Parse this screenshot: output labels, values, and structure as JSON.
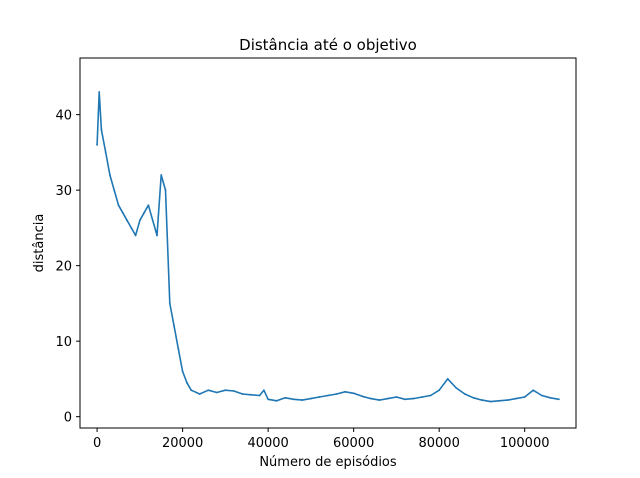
{
  "chart_data": {
    "type": "line",
    "title": "Distância até o objetivo",
    "xlabel": "Número de episódios",
    "ylabel": "distância",
    "xlim": [
      -4000,
      112000
    ],
    "ylim": [
      -1.5,
      47.5
    ],
    "xticks": [
      0,
      20000,
      40000,
      60000,
      80000,
      100000
    ],
    "xtick_labels": [
      "0",
      "20000",
      "40000",
      "60000",
      "80000",
      "100000"
    ],
    "yticks": [
      0,
      10,
      20,
      30,
      40
    ],
    "ytick_labels": [
      "0",
      "10",
      "20",
      "30",
      "40"
    ],
    "grid": false,
    "legend": "none",
    "series": [
      {
        "color": "#1f77b4",
        "x": [
          0,
          500,
          1000,
          2000,
          3000,
          4000,
          5000,
          6000,
          7000,
          8000,
          9000,
          10000,
          11000,
          12000,
          13000,
          14000,
          15000,
          16000,
          17000,
          18000,
          19000,
          20000,
          21000,
          22000,
          24000,
          26000,
          28000,
          30000,
          32000,
          34000,
          36000,
          38000,
          39000,
          40000,
          42000,
          44000,
          46000,
          48000,
          50000,
          52000,
          54000,
          56000,
          58000,
          60000,
          62000,
          64000,
          66000,
          68000,
          70000,
          72000,
          74000,
          76000,
          78000,
          80000,
          82000,
          84000,
          86000,
          88000,
          90000,
          92000,
          94000,
          96000,
          98000,
          100000,
          102000,
          104000,
          106000,
          108000
        ],
        "y": [
          36,
          43,
          38,
          35,
          32,
          30,
          28,
          27,
          26,
          25,
          24,
          26,
          27,
          28,
          26,
          24,
          32,
          30,
          15,
          12,
          9,
          6,
          4.5,
          3.5,
          3,
          3.5,
          3.2,
          3.5,
          3.4,
          3,
          2.9,
          2.8,
          3.5,
          2.3,
          2.1,
          2.5,
          2.3,
          2.2,
          2.4,
          2.6,
          2.8,
          3,
          3.3,
          3.1,
          2.7,
          2.4,
          2.2,
          2.4,
          2.6,
          2.3,
          2.4,
          2.6,
          2.8,
          3.5,
          5,
          3.8,
          3,
          2.5,
          2.2,
          2,
          2.1,
          2.2,
          2.4,
          2.6,
          3.5,
          2.8,
          2.5,
          2.3
        ]
      }
    ]
  }
}
